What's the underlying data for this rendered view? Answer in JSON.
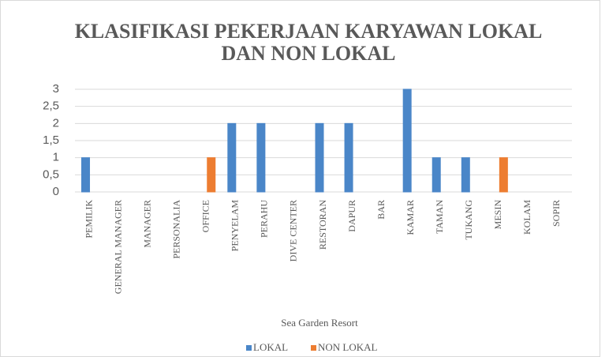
{
  "chart_data": {
    "type": "bar",
    "title": "KLASIFIKASI PEKERJAAN KARYAWAN LOKAL DAN NON LOKAL",
    "x_label": "Sea Garden Resort",
    "categories": [
      "PEMILIK",
      "GENERAL MANAGER",
      "MANAGER",
      "PERSONALIA",
      "OFFICE",
      "PENYELAM",
      "PERAHU",
      "DIVE CENTER",
      "RESTORAN",
      "DAPUR",
      "BAR",
      "KAMAR",
      "TAMAN",
      "TUKANG",
      "MESIN",
      "KOLAM",
      "SOPIR"
    ],
    "series": [
      {
        "name": "LOKAL",
        "color": "#4a86c8",
        "values": [
          1,
          0,
          0,
          0,
          0,
          2,
          2,
          0,
          2,
          2,
          0,
          3,
          1,
          1,
          0,
          0,
          0
        ]
      },
      {
        "name": "NON LOKAL",
        "color": "#ed7d31",
        "values": [
          0,
          0,
          0,
          0,
          1,
          0,
          0,
          0,
          0,
          0,
          0,
          0,
          0,
          0,
          1,
          0,
          0
        ]
      }
    ],
    "ylim": [
      0,
      3
    ],
    "yticks": [
      0,
      {
        "value": 0.5,
        "label": "0,5"
      },
      1,
      {
        "value": 1.5,
        "label": "1,5"
      },
      2,
      {
        "value": 2.5,
        "label": "2,5"
      },
      3
    ],
    "grid": true,
    "legend": "bottom"
  }
}
